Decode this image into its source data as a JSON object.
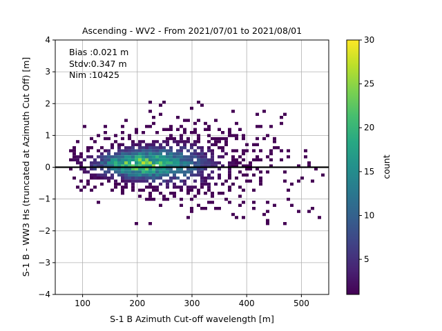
{
  "chart_data": {
    "type": "heatmap",
    "title": "Ascending - WV2 - From 2021/07/01 to 2021/08/01",
    "xlabel": "S-1 B Azimuth Cut-off wavelength [m]",
    "ylabel": "S-1 B - WW3 Hs (truncated at Azimuth Cut Off) [m]",
    "xlim": [
      50,
      550
    ],
    "ylim": [
      -4,
      4
    ],
    "xticks": [
      100,
      200,
      300,
      400,
      500
    ],
    "yticks": [
      -4,
      -3,
      -2,
      -1,
      0,
      1,
      2,
      3,
      4
    ],
    "grid": true,
    "zero_line": 0,
    "annotations": [
      "Bias :0.021 m",
      "Stdv:0.347 m",
      "Nim :10425"
    ],
    "colorbar": {
      "label": "count",
      "colormap": "viridis",
      "range": [
        1,
        30
      ],
      "ticks": [
        5,
        10,
        15,
        20,
        25,
        30
      ]
    },
    "density_summary": {
      "peak_x": 200,
      "peak_y": 0.1,
      "peak_count": 28,
      "x_spread": 65,
      "y_spread": 0.33,
      "x_range": [
        75,
        540
      ],
      "y_range": [
        -1.75,
        2.1
      ]
    }
  }
}
